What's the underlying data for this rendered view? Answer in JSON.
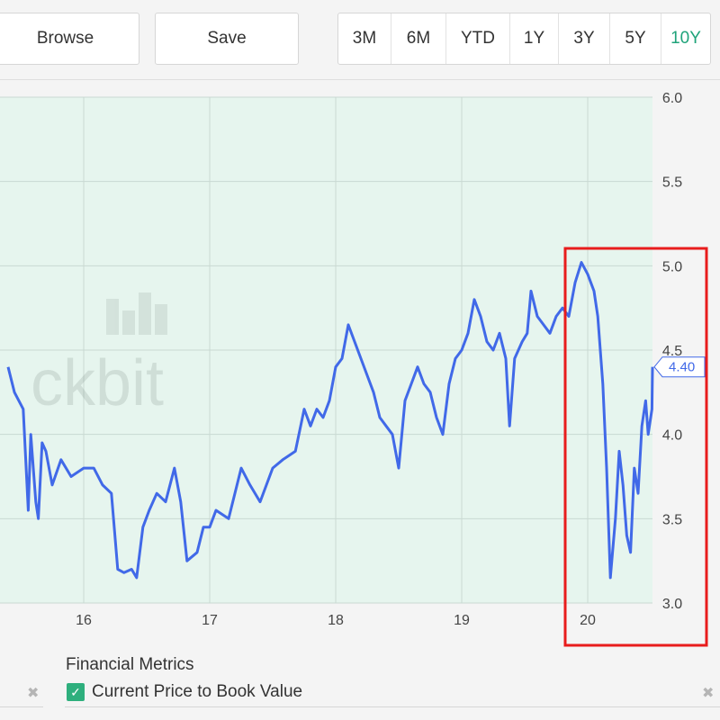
{
  "toolbar": {
    "browse_label": "Browse",
    "save_label": "Save",
    "ranges": [
      "3M",
      "6M",
      "YTD",
      "1Y",
      "3Y",
      "5Y",
      "10Y"
    ],
    "active_range": "10Y"
  },
  "watermark": "ckbit",
  "metrics": {
    "title": "Financial Metrics",
    "items": [
      {
        "label": "Current Price to Book Value",
        "checked": true
      }
    ],
    "remove_icon": "✖"
  },
  "colors": {
    "line": "#4169e8",
    "plot_bg": "#e6f5ee",
    "accent": "#1fa37a",
    "highlight_box": "#e81c1c"
  },
  "chart_data": {
    "type": "line",
    "x_ticks": [
      "16",
      "17",
      "18",
      "19",
      "20"
    ],
    "y_ticks": [
      "3.0",
      "3.5",
      "4.0",
      "4.5",
      "5.0",
      "5.5",
      "6.0"
    ],
    "ylim": [
      3.0,
      6.0
    ],
    "xlim": [
      2015.4,
      2020.55
    ],
    "last_value_label": "4.40",
    "series": [
      {
        "values": [
          [
            2015.4,
            4.4
          ],
          [
            2015.45,
            4.25
          ],
          [
            2015.52,
            4.15
          ],
          [
            2015.56,
            3.55
          ],
          [
            2015.58,
            4.0
          ],
          [
            2015.62,
            3.6
          ],
          [
            2015.64,
            3.5
          ],
          [
            2015.67,
            3.95
          ],
          [
            2015.7,
            3.9
          ],
          [
            2015.75,
            3.7
          ],
          [
            2015.82,
            3.85
          ],
          [
            2015.9,
            3.75
          ],
          [
            2016.0,
            3.8
          ],
          [
            2016.08,
            3.8
          ],
          [
            2016.15,
            3.7
          ],
          [
            2016.22,
            3.65
          ],
          [
            2016.27,
            3.2
          ],
          [
            2016.32,
            3.18
          ],
          [
            2016.38,
            3.2
          ],
          [
            2016.42,
            3.15
          ],
          [
            2016.47,
            3.45
          ],
          [
            2016.52,
            3.55
          ],
          [
            2016.58,
            3.65
          ],
          [
            2016.65,
            3.6
          ],
          [
            2016.72,
            3.8
          ],
          [
            2016.77,
            3.6
          ],
          [
            2016.82,
            3.25
          ],
          [
            2016.9,
            3.3
          ],
          [
            2016.95,
            3.45
          ],
          [
            2017.0,
            3.45
          ],
          [
            2017.05,
            3.55
          ],
          [
            2017.15,
            3.5
          ],
          [
            2017.25,
            3.8
          ],
          [
            2017.32,
            3.7
          ],
          [
            2017.4,
            3.6
          ],
          [
            2017.5,
            3.8
          ],
          [
            2017.58,
            3.85
          ],
          [
            2017.68,
            3.9
          ],
          [
            2017.75,
            4.15
          ],
          [
            2017.8,
            4.05
          ],
          [
            2017.85,
            4.15
          ],
          [
            2017.9,
            4.1
          ],
          [
            2017.95,
            4.2
          ],
          [
            2018.0,
            4.4
          ],
          [
            2018.05,
            4.45
          ],
          [
            2018.1,
            4.65
          ],
          [
            2018.15,
            4.55
          ],
          [
            2018.2,
            4.45
          ],
          [
            2018.25,
            4.35
          ],
          [
            2018.3,
            4.25
          ],
          [
            2018.35,
            4.1
          ],
          [
            2018.4,
            4.05
          ],
          [
            2018.45,
            4.0
          ],
          [
            2018.5,
            3.8
          ],
          [
            2018.55,
            4.2
          ],
          [
            2018.6,
            4.3
          ],
          [
            2018.65,
            4.4
          ],
          [
            2018.7,
            4.3
          ],
          [
            2018.75,
            4.25
          ],
          [
            2018.8,
            4.1
          ],
          [
            2018.85,
            4.0
          ],
          [
            2018.9,
            4.3
          ],
          [
            2018.95,
            4.45
          ],
          [
            2019.0,
            4.5
          ],
          [
            2019.05,
            4.6
          ],
          [
            2019.1,
            4.8
          ],
          [
            2019.15,
            4.7
          ],
          [
            2019.2,
            4.55
          ],
          [
            2019.25,
            4.5
          ],
          [
            2019.3,
            4.6
          ],
          [
            2019.35,
            4.45
          ],
          [
            2019.38,
            4.05
          ],
          [
            2019.42,
            4.45
          ],
          [
            2019.48,
            4.55
          ],
          [
            2019.52,
            4.6
          ],
          [
            2019.55,
            4.85
          ],
          [
            2019.6,
            4.7
          ],
          [
            2019.65,
            4.65
          ],
          [
            2019.7,
            4.6
          ],
          [
            2019.75,
            4.7
          ],
          [
            2019.8,
            4.75
          ],
          [
            2019.85,
            4.7
          ],
          [
            2019.9,
            4.9
          ],
          [
            2019.95,
            5.02
          ],
          [
            2020.0,
            4.95
          ],
          [
            2020.05,
            4.85
          ],
          [
            2020.08,
            4.7
          ],
          [
            2020.12,
            4.3
          ],
          [
            2020.15,
            3.8
          ],
          [
            2020.18,
            3.15
          ],
          [
            2020.22,
            3.5
          ],
          [
            2020.25,
            3.9
          ],
          [
            2020.28,
            3.7
          ],
          [
            2020.31,
            3.4
          ],
          [
            2020.34,
            3.3
          ],
          [
            2020.37,
            3.8
          ],
          [
            2020.4,
            3.65
          ],
          [
            2020.43,
            4.05
          ],
          [
            2020.46,
            4.2
          ],
          [
            2020.48,
            4.0
          ],
          [
            2020.51,
            4.15
          ],
          [
            2020.53,
            4.4
          ],
          [
            2020.55,
            4.4
          ]
        ]
      }
    ]
  }
}
